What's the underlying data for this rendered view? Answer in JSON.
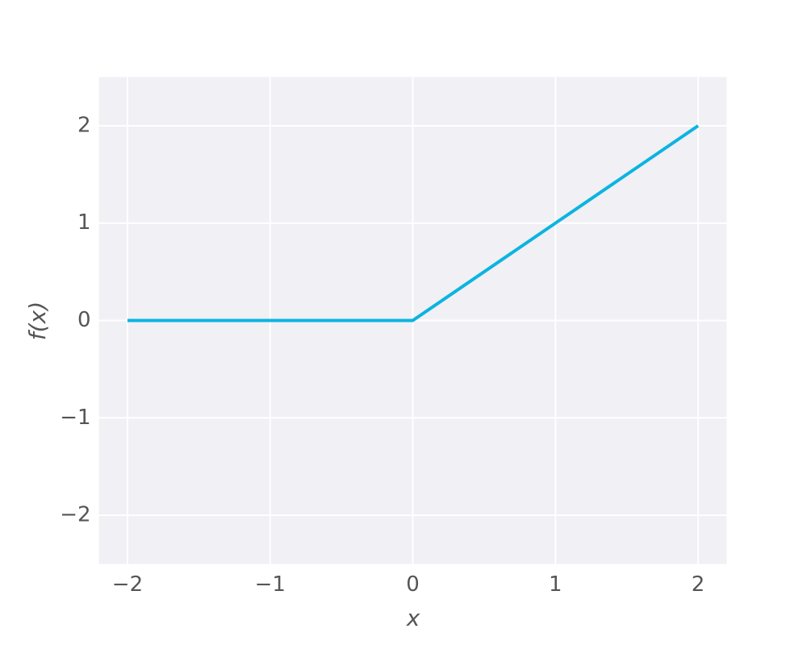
{
  "chart_data": {
    "type": "line",
    "x_label": "x",
    "y_label": "f(x)",
    "x": [
      -2,
      0,
      2
    ],
    "series": [
      {
        "name": "f(x)",
        "color": "#0bb4e0",
        "values": [
          0,
          0,
          2
        ]
      }
    ],
    "xlim": [
      -2.2,
      2.2
    ],
    "xticks": [
      {
        "value": -2,
        "label": "−2"
      },
      {
        "value": -1,
        "label": "−1"
      },
      0,
      1,
      2
    ],
    "ylim": [
      -2.5,
      2.5
    ],
    "yticks": [
      {
        "value": -2,
        "label": "−2"
      },
      {
        "value": -1,
        "label": "−1"
      },
      0,
      1,
      2
    ],
    "grid": true
  }
}
